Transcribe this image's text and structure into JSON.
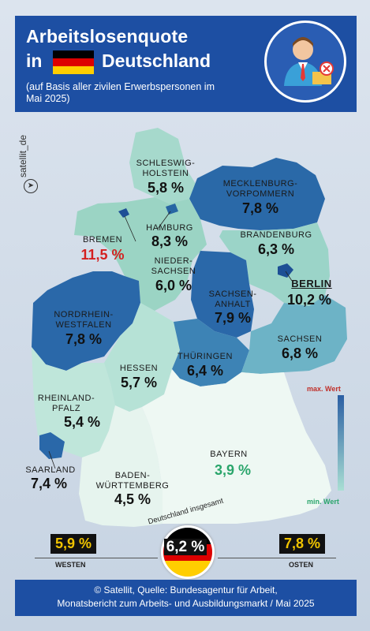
{
  "header": {
    "title_line1": "Arbeitslosenquote",
    "title_line2_prefix": "in",
    "title_line2_suffix": "Deutschland",
    "subtitle": "(auf Basis aller zivilen Erwerbspersonen im Mai 2025)",
    "flag_colors": [
      "#000000",
      "#dd0000",
      "#ffce00"
    ],
    "avatar_icon": "businessman-icon"
  },
  "brand": "satellit_de",
  "regions": [
    {
      "label": "SCHLESWIG-HOLSTEIN",
      "label_lines": [
        "SCHLESWIG-",
        "HOLSTEIN"
      ],
      "value": "5,8 %",
      "rate": 5.8
    },
    {
      "label": "MECKLENBURG-VORPOMMERN",
      "label_lines": [
        "MECKLENBURG-",
        "VORPOMMERN"
      ],
      "value": "7,8 %",
      "rate": 7.8
    },
    {
      "label": "HAMBURG",
      "label_lines": [
        "HAMBURG"
      ],
      "value": "8,3 %",
      "rate": 8.3
    },
    {
      "label": "BREMEN",
      "label_lines": [
        "BREMEN"
      ],
      "value": "11,5 %",
      "rate": 11.5,
      "highlight": "max"
    },
    {
      "label": "NIEDERSACHSEN",
      "label_lines": [
        "NIEDER-",
        "SACHSEN"
      ],
      "value": "6,0 %",
      "rate": 6.0
    },
    {
      "label": "BRANDENBURG",
      "label_lines": [
        "BRANDENBURG"
      ],
      "value": "6,3 %",
      "rate": 6.3
    },
    {
      "label": "BERLIN",
      "label_lines": [
        "BERLIN"
      ],
      "value": "10,2 %",
      "rate": 10.2
    },
    {
      "label": "SACHSEN-ANHALT",
      "label_lines": [
        "SACHSEN-",
        "ANHALT"
      ],
      "value": "7,9 %",
      "rate": 7.9
    },
    {
      "label": "NORDRHEIN-WESTFALEN",
      "label_lines": [
        "NORDRHEIN-",
        "WESTFALEN"
      ],
      "value": "7,8 %",
      "rate": 7.8
    },
    {
      "label": "SACHSEN",
      "label_lines": [
        "SACHSEN"
      ],
      "value": "6,8 %",
      "rate": 6.8
    },
    {
      "label": "THÜRINGEN",
      "label_lines": [
        "THÜRINGEN"
      ],
      "value": "6,4 %",
      "rate": 6.4
    },
    {
      "label": "HESSEN",
      "label_lines": [
        "HESSEN"
      ],
      "value": "5,7 %",
      "rate": 5.7
    },
    {
      "label": "RHEINLAND-PFALZ",
      "label_lines": [
        "RHEINLAND-",
        "PFALZ"
      ],
      "value": "5,4 %",
      "rate": 5.4
    },
    {
      "label": "SAARLAND",
      "label_lines": [
        "SAARLAND"
      ],
      "value": "7,4 %",
      "rate": 7.4
    },
    {
      "label": "BAYERN",
      "label_lines": [
        "BAYERN"
      ],
      "value": "3,9 %",
      "rate": 3.9,
      "highlight": "min"
    },
    {
      "label": "BADEN-WÜRTTEMBERG",
      "label_lines": [
        "BADEN-",
        "WÜRTTEMBERG"
      ],
      "value": "4,5 %",
      "rate": 4.5
    }
  ],
  "legend": {
    "max_label": "max. Wert",
    "min_label": "min. Wert",
    "max_color": "#2a5ea3",
    "min_color": "#a9dfd3",
    "max_text_color": "#c0302a",
    "min_text_color": "#2aa56b"
  },
  "summary": {
    "national_caption": "Deutschland insgesamt",
    "national_value": "6,2 %",
    "west_value": "5,9 %",
    "west_label": "WESTEN",
    "east_value": "7,8 %",
    "east_label": "OSTEN"
  },
  "footer": {
    "line1": "© Satellit, Quelle: Bundesagentur für Arbeit,",
    "line2": "Monatsbericht zum Arbeits- und Ausbildungsmarkt / Mai 2025"
  }
}
